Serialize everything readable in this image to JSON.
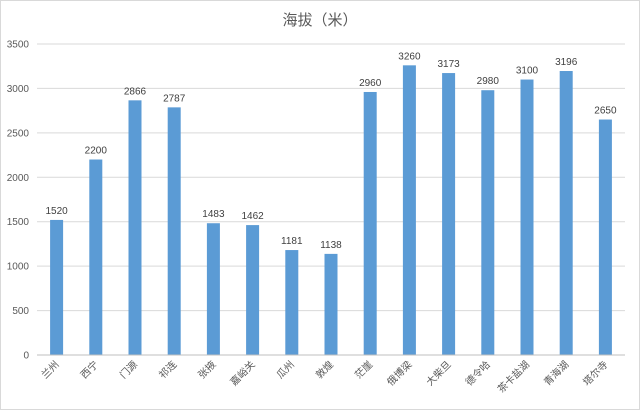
{
  "chart_data": {
    "type": "bar",
    "title": "海拔（米）",
    "xlabel": "",
    "ylabel": "",
    "categories": [
      "兰州",
      "西宁",
      "门源",
      "祁连",
      "张掖",
      "嘉峪关",
      "瓜州",
      "敦煌",
      "茫崖",
      "俄博梁",
      "大柴旦",
      "德令哈",
      "茶卡盐湖",
      "青海湖",
      "塔尔寺"
    ],
    "values": [
      1520,
      2200,
      2866,
      2787,
      1483,
      1462,
      1181,
      1138,
      2960,
      3260,
      3173,
      2980,
      3100,
      3196,
      2650
    ],
    "ylim": [
      0,
      3500
    ],
    "yticks": [
      0,
      500,
      1000,
      1500,
      2000,
      2500,
      3000,
      3500
    ],
    "grid": true,
    "legend": "none",
    "bar_color": "#5b9bd5",
    "grid_color": "#d9d9d9"
  }
}
